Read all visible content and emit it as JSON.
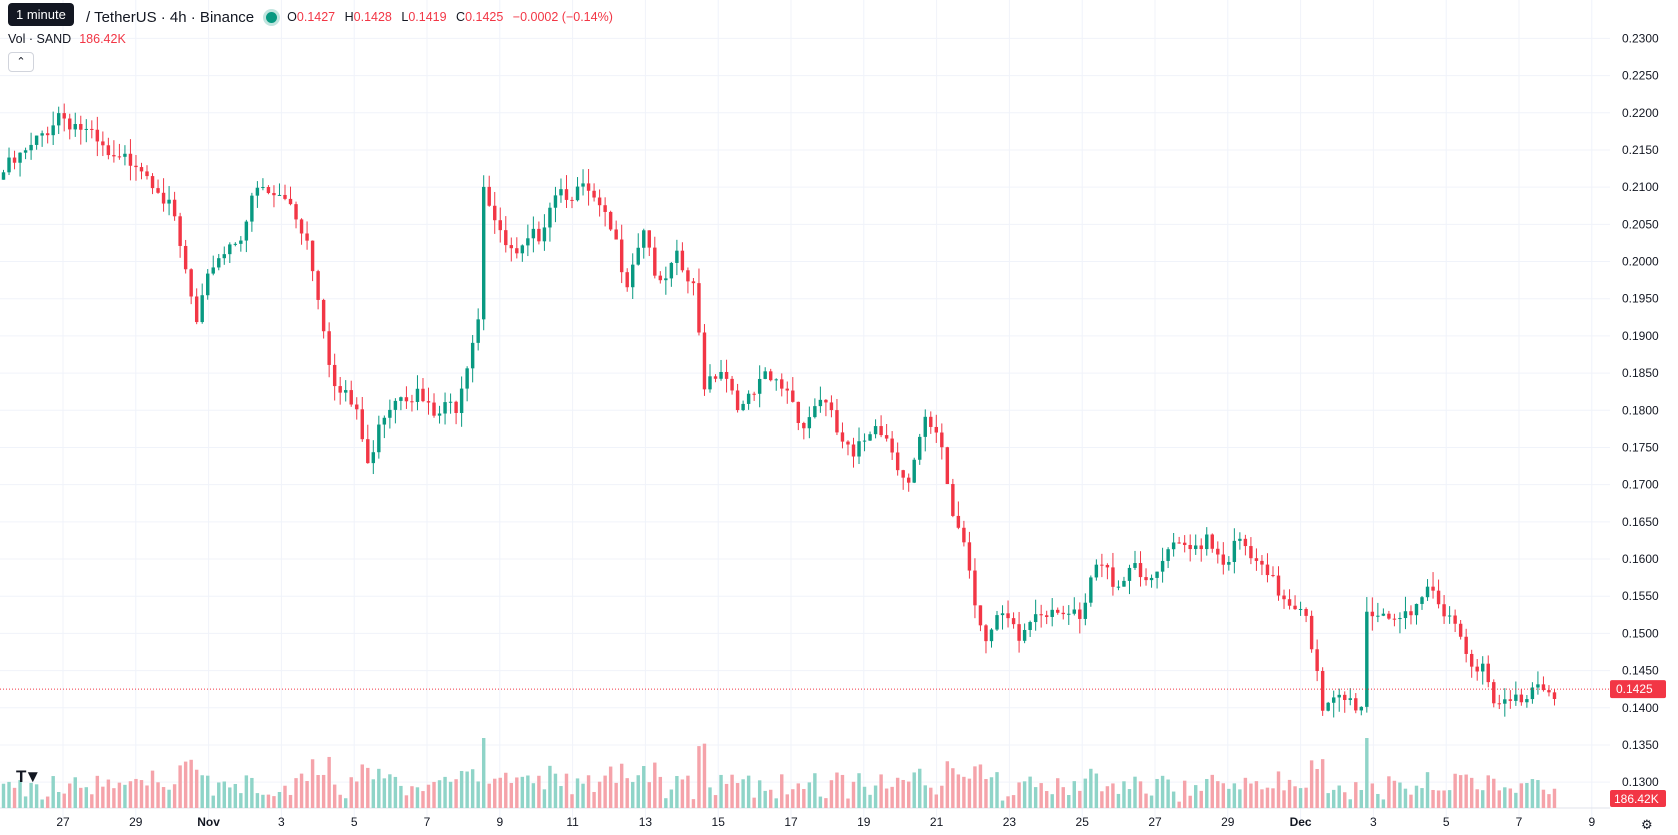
{
  "header": {
    "tooltip": "1 minute",
    "symbol": "/ TetherUS · 4h · Binance",
    "open_label": "O",
    "open": "0.1427",
    "high_label": "H",
    "high": "0.1428",
    "low_label": "L",
    "low": "0.1419",
    "close_label": "C",
    "close": "0.1425",
    "change": "−0.0002 (−0.14%)"
  },
  "volume": {
    "label": "Vol · SAND",
    "value": "186.42K"
  },
  "icons": {
    "collapse": "chevron-up-icon",
    "logo": "tradingview-logo-icon",
    "settings": "gear-icon"
  },
  "colors": {
    "up": "#089981",
    "down": "#f23645",
    "vol_up": "#8fd4c8",
    "vol_down": "#f5a3aa"
  },
  "chart_data": {
    "type": "candlestick",
    "y_ticks": [
      "0.2300",
      "0.2250",
      "0.2200",
      "0.2150",
      "0.2100",
      "0.2050",
      "0.2000",
      "0.1950",
      "0.1900",
      "0.1850",
      "0.1800",
      "0.1750",
      "0.1700",
      "0.1650",
      "0.1600",
      "0.1550",
      "0.1500",
      "0.1450",
      "0.1400",
      "0.1350",
      "0.1300"
    ],
    "ylim": [
      0.128,
      0.231
    ],
    "x_ticks": [
      "27",
      "29",
      "Nov",
      "3",
      "5",
      "7",
      "9",
      "11",
      "13",
      "15",
      "17",
      "19",
      "21",
      "23",
      "25",
      "27",
      "29",
      "Dec",
      "3",
      "5",
      "7",
      "9"
    ],
    "last_price": "0.1425",
    "last_volume": "186.42K",
    "grid": true,
    "close_path": [
      {
        "t": 0,
        "c": 0.212
      },
      {
        "t": 5,
        "c": 0.215
      },
      {
        "t": 10,
        "c": 0.22
      },
      {
        "t": 14,
        "c": 0.218
      },
      {
        "t": 20,
        "c": 0.213
      },
      {
        "t": 24,
        "c": 0.214
      },
      {
        "t": 28,
        "c": 0.2105
      },
      {
        "t": 31,
        "c": 0.205
      },
      {
        "t": 34,
        "c": 0.195
      },
      {
        "t": 35,
        "c": 0.191
      },
      {
        "t": 38,
        "c": 0.2
      },
      {
        "t": 43,
        "c": 0.204
      },
      {
        "t": 46,
        "c": 0.2095
      },
      {
        "t": 52,
        "c": 0.208
      },
      {
        "t": 55,
        "c": 0.203
      },
      {
        "t": 57,
        "c": 0.196
      },
      {
        "t": 60,
        "c": 0.183
      },
      {
        "t": 64,
        "c": 0.18
      },
      {
        "t": 66,
        "c": 0.172
      },
      {
        "t": 68,
        "c": 0.179
      },
      {
        "t": 72,
        "c": 0.183
      },
      {
        "t": 75,
        "c": 0.182
      },
      {
        "t": 78,
        "c": 0.179
      },
      {
        "t": 82,
        "c": 0.181
      },
      {
        "t": 84,
        "c": 0.187
      },
      {
        "t": 86,
        "c": 0.193
      },
      {
        "t": 87,
        "c": 0.211
      },
      {
        "t": 90,
        "c": 0.203
      },
      {
        "t": 93,
        "c": 0.2
      },
      {
        "t": 97,
        "c": 0.204
      },
      {
        "t": 100,
        "c": 0.21
      },
      {
        "t": 106,
        "c": 0.209
      },
      {
        "t": 110,
        "c": 0.204
      },
      {
        "t": 113,
        "c": 0.198
      },
      {
        "t": 116,
        "c": 0.205
      },
      {
        "t": 119,
        "c": 0.196
      },
      {
        "t": 122,
        "c": 0.2
      },
      {
        "t": 125,
        "c": 0.196
      },
      {
        "t": 127,
        "c": 0.184
      },
      {
        "t": 130,
        "c": 0.186
      },
      {
        "t": 134,
        "c": 0.18
      },
      {
        "t": 138,
        "c": 0.184
      },
      {
        "t": 142,
        "c": 0.183
      },
      {
        "t": 145,
        "c": 0.178
      },
      {
        "t": 148,
        "c": 0.182
      },
      {
        "t": 151,
        "c": 0.177
      },
      {
        "t": 154,
        "c": 0.173
      },
      {
        "t": 158,
        "c": 0.179
      },
      {
        "t": 161,
        "c": 0.175
      },
      {
        "t": 164,
        "c": 0.17
      },
      {
        "t": 167,
        "c": 0.178
      },
      {
        "t": 170,
        "c": 0.175
      },
      {
        "t": 172,
        "c": 0.166
      },
      {
        "t": 174,
        "c": 0.163
      },
      {
        "t": 176,
        "c": 0.155
      },
      {
        "t": 178,
        "c": 0.149
      },
      {
        "t": 181,
        "c": 0.152
      },
      {
        "t": 184,
        "c": 0.149
      },
      {
        "t": 187,
        "c": 0.153
      },
      {
        "t": 191,
        "c": 0.154
      },
      {
        "t": 195,
        "c": 0.151
      },
      {
        "t": 198,
        "c": 0.159
      },
      {
        "t": 202,
        "c": 0.157
      },
      {
        "t": 205,
        "c": 0.16
      },
      {
        "t": 208,
        "c": 0.156
      },
      {
        "t": 211,
        "c": 0.161
      },
      {
        "t": 215,
        "c": 0.161
      },
      {
        "t": 218,
        "c": 0.1635
      },
      {
        "t": 221,
        "c": 0.16
      },
      {
        "t": 224,
        "c": 0.162
      },
      {
        "t": 228,
        "c": 0.158
      },
      {
        "t": 232,
        "c": 0.155
      },
      {
        "t": 236,
        "c": 0.1535
      },
      {
        "t": 238,
        "c": 0.144
      },
      {
        "t": 239,
        "c": 0.139
      },
      {
        "t": 242,
        "c": 0.141
      },
      {
        "t": 246,
        "c": 0.1405
      },
      {
        "t": 247,
        "c": 0.153
      },
      {
        "t": 251,
        "c": 0.153
      },
      {
        "t": 255,
        "c": 0.151
      },
      {
        "t": 258,
        "c": 0.156
      },
      {
        "t": 262,
        "c": 0.153
      },
      {
        "t": 265,
        "c": 0.148
      },
      {
        "t": 268,
        "c": 0.145
      },
      {
        "t": 270,
        "c": 0.14
      },
      {
        "t": 273,
        "c": 0.1405
      },
      {
        "t": 276,
        "c": 0.142
      },
      {
        "t": 278,
        "c": 0.144
      },
      {
        "t": 281,
        "c": 0.1425
      }
    ]
  }
}
